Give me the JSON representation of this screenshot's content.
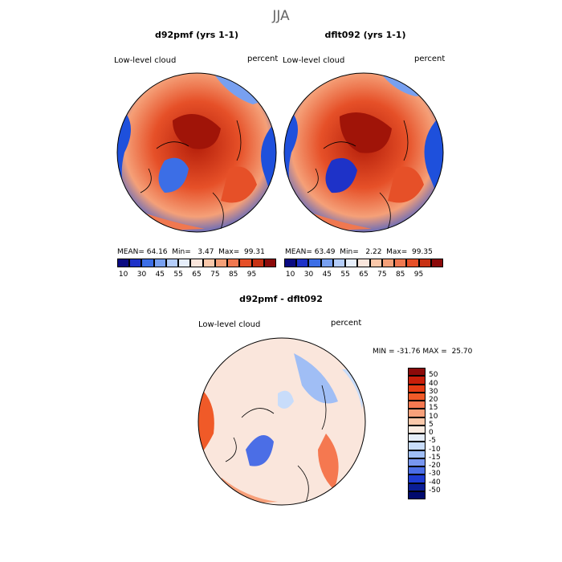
{
  "page": {
    "title": "JJA"
  },
  "panels": [
    {
      "name": "d92pmf",
      "title": "d92pmf (yrs 1-1)",
      "field": "Low-level cloud",
      "units": "percent",
      "stats": {
        "mean_label": "MEAN=",
        "mean": "64.16",
        "min_label": "Min=",
        "min": "3.47",
        "max_label": "Max=",
        "max": "99.31"
      }
    },
    {
      "name": "dflt092",
      "title": "dflt092 (yrs 1-1)",
      "field": "Low-level cloud",
      "units": "percent",
      "stats": {
        "mean_label": "MEAN=",
        "mean": "63.49",
        "min_label": "Min=",
        "min": "2.22",
        "max_label": "Max=",
        "max": "99.35"
      }
    }
  ],
  "colorbar_abs": {
    "labels": [
      "10",
      "30",
      "45",
      "55",
      "65",
      "75",
      "85",
      "95"
    ],
    "colors": [
      "#0a0a82",
      "#1e32c8",
      "#3c6ee6",
      "#78a0f0",
      "#b4cdfa",
      "#e6eefa",
      "#fae6dc",
      "#fac8aa",
      "#f5a078",
      "#f07850",
      "#e65028",
      "#c83214",
      "#8c0a0a"
    ]
  },
  "diff": {
    "title": "d92pmf - dflt092",
    "field": "Low-level cloud",
    "units": "percent",
    "stats": {
      "min_label": "MIN =",
      "min": "-31.76",
      "max_label": "MAX =",
      "max": "25.70"
    },
    "levels": [
      "50",
      "40",
      "30",
      "20",
      "15",
      "10",
      "5",
      "0",
      "-5",
      "-10",
      "-15",
      "-20",
      "-30",
      "-40",
      "-50"
    ],
    "colors": [
      "#8c0a0a",
      "#c81e0a",
      "#e63c14",
      "#f05a28",
      "#f57850",
      "#f8a07a",
      "#fac8aa",
      "#faebe1",
      "#e6eefa",
      "#c8dcfa",
      "#a0bef5",
      "#7896f0",
      "#4b6ee6",
      "#1e3cd2",
      "#0a1e96",
      "#000a6e"
    ]
  }
}
